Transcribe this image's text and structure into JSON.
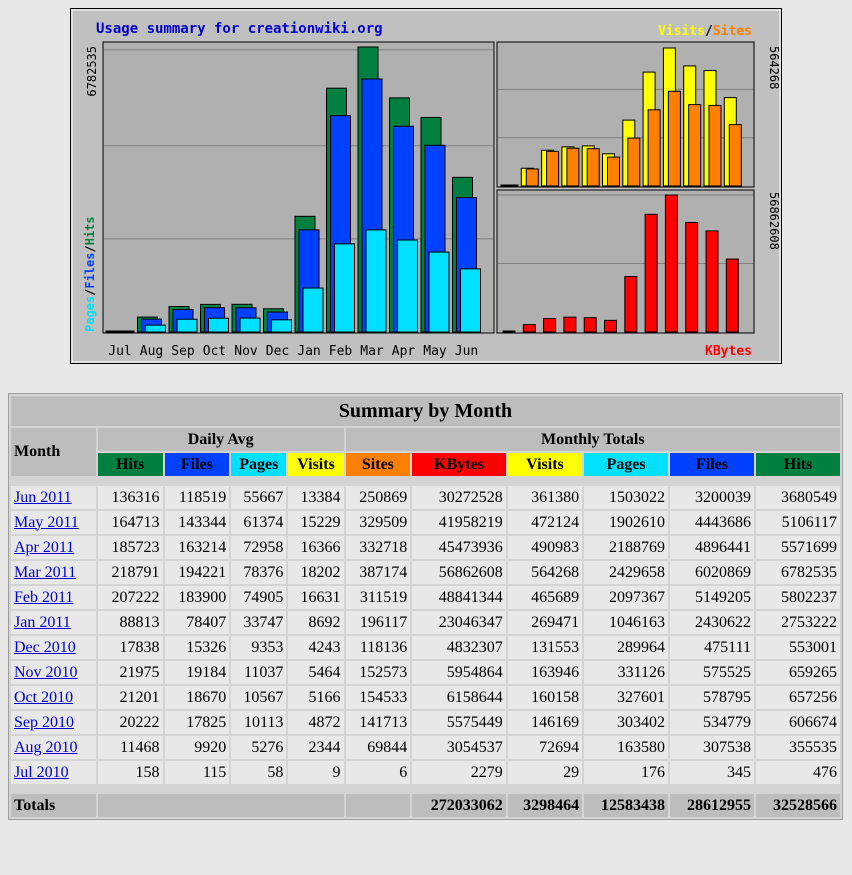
{
  "colors": {
    "hits": "#008040",
    "files": "#0040ff",
    "pages": "#00e0ff",
    "visits": "#ffff00",
    "sites": "#ff8000",
    "kbytes": "#ff0000",
    "title_text": "#0000cc",
    "bg": "#c0c0c0",
    "panel": "#b0b0b0"
  },
  "chart_data": {
    "type": "bar",
    "title": "Usage summary for creationwiki.org",
    "categories": [
      "Jul",
      "Aug",
      "Sep",
      "Oct",
      "Nov",
      "Dec",
      "Jan",
      "Feb",
      "Mar",
      "Apr",
      "May",
      "Jun"
    ],
    "left_axis_max_label": "6782535",
    "left_legend": [
      "Pages",
      "/",
      "Files",
      "/",
      "Hits"
    ],
    "right_top_axis_label": "564268",
    "right_top_legend": [
      "Visits",
      "/",
      "Sites"
    ],
    "right_bottom_axis_label": "56862608",
    "right_bottom_legend": "KBytes",
    "series": [
      {
        "name": "Hits",
        "values": [
          476,
          355535,
          606674,
          657256,
          659265,
          553001,
          2753222,
          5802237,
          6782535,
          5571699,
          5106117,
          3680549
        ]
      },
      {
        "name": "Files",
        "values": [
          345,
          307538,
          534779,
          578795,
          575525,
          475111,
          2430622,
          5149205,
          6020869,
          4896441,
          4443686,
          3200039
        ]
      },
      {
        "name": "Pages",
        "values": [
          176,
          163580,
          303402,
          327601,
          331126,
          289964,
          1046163,
          2097367,
          2429658,
          2188769,
          1902610,
          1503022
        ]
      },
      {
        "name": "Visits",
        "values": [
          29,
          72694,
          146169,
          160158,
          163946,
          131553,
          269471,
          465689,
          564268,
          490983,
          472124,
          361380
        ]
      },
      {
        "name": "Sites",
        "values": [
          6,
          69844,
          141713,
          154533,
          152573,
          118136,
          196117,
          311519,
          387174,
          332718,
          329509,
          250869
        ]
      },
      {
        "name": "KBytes",
        "values": [
          2279,
          3054537,
          5575449,
          6158644,
          5954864,
          4832307,
          23046347,
          48841344,
          56862608,
          45473936,
          41958219,
          30272528
        ]
      }
    ]
  },
  "table": {
    "title": "Summary by Month",
    "month_header": "Month",
    "daily_avg_header": "Daily Avg",
    "monthly_totals_header": "Monthly Totals",
    "daily_cols": [
      "Hits",
      "Files",
      "Pages",
      "Visits"
    ],
    "monthly_cols": [
      "Sites",
      "KBytes",
      "Visits",
      "Pages",
      "Files",
      "Hits"
    ],
    "rows": [
      {
        "month": "Jun 2011",
        "d": [
          "136316",
          "118519",
          "55667",
          "13384"
        ],
        "m": [
          "250869",
          "30272528",
          "361380",
          "1503022",
          "3200039",
          "3680549"
        ]
      },
      {
        "month": "May 2011",
        "d": [
          "164713",
          "143344",
          "61374",
          "15229"
        ],
        "m": [
          "329509",
          "41958219",
          "472124",
          "1902610",
          "4443686",
          "5106117"
        ]
      },
      {
        "month": "Apr 2011",
        "d": [
          "185723",
          "163214",
          "72958",
          "16366"
        ],
        "m": [
          "332718",
          "45473936",
          "490983",
          "2188769",
          "4896441",
          "5571699"
        ]
      },
      {
        "month": "Mar 2011",
        "d": [
          "218791",
          "194221",
          "78376",
          "18202"
        ],
        "m": [
          "387174",
          "56862608",
          "564268",
          "2429658",
          "6020869",
          "6782535"
        ]
      },
      {
        "month": "Feb 2011",
        "d": [
          "207222",
          "183900",
          "74905",
          "16631"
        ],
        "m": [
          "311519",
          "48841344",
          "465689",
          "2097367",
          "5149205",
          "5802237"
        ]
      },
      {
        "month": "Jan 2011",
        "d": [
          "88813",
          "78407",
          "33747",
          "8692"
        ],
        "m": [
          "196117",
          "23046347",
          "269471",
          "1046163",
          "2430622",
          "2753222"
        ]
      },
      {
        "month": "Dec 2010",
        "d": [
          "17838",
          "15326",
          "9353",
          "4243"
        ],
        "m": [
          "118136",
          "4832307",
          "131553",
          "289964",
          "475111",
          "553001"
        ]
      },
      {
        "month": "Nov 2010",
        "d": [
          "21975",
          "19184",
          "11037",
          "5464"
        ],
        "m": [
          "152573",
          "5954864",
          "163946",
          "331126",
          "575525",
          "659265"
        ]
      },
      {
        "month": "Oct 2010",
        "d": [
          "21201",
          "18670",
          "10567",
          "5166"
        ],
        "m": [
          "154533",
          "6158644",
          "160158",
          "327601",
          "578795",
          "657256"
        ]
      },
      {
        "month": "Sep 2010",
        "d": [
          "20222",
          "17825",
          "10113",
          "4872"
        ],
        "m": [
          "141713",
          "5575449",
          "146169",
          "303402",
          "534779",
          "606674"
        ]
      },
      {
        "month": "Aug 2010",
        "d": [
          "11468",
          "9920",
          "5276",
          "2344"
        ],
        "m": [
          "69844",
          "3054537",
          "72694",
          "163580",
          "307538",
          "355535"
        ]
      },
      {
        "month": "Jul 2010",
        "d": [
          "158",
          "115",
          "58",
          "9"
        ],
        "m": [
          "6",
          "2279",
          "29",
          "176",
          "345",
          "476"
        ]
      }
    ],
    "totals_label": "Totals",
    "totals": [
      "272033062",
      "3298464",
      "12583438",
      "28612955",
      "32528566"
    ]
  }
}
